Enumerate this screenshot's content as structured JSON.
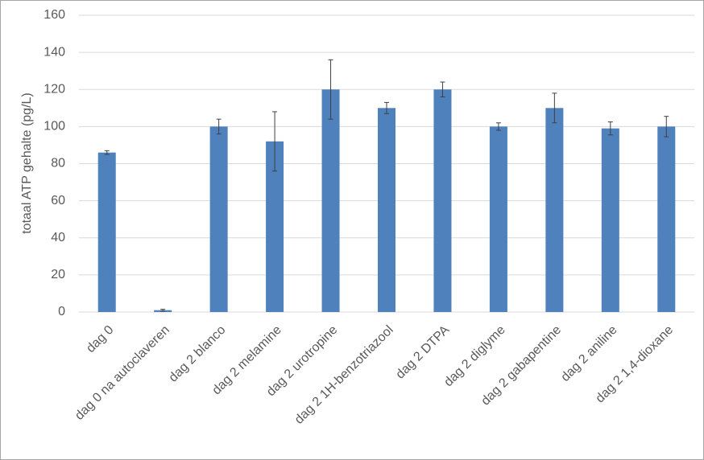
{
  "chart_data": {
    "type": "bar",
    "y_label": "totaal ATP gehalte (pg/L)",
    "categories": [
      "dag 0",
      "dag 0 na autoclaveren",
      "dag 2 blanco",
      "dag 2 melamine",
      "dag 2 urotropine",
      "dag 2 1H-benzotriazool",
      "dag 2 DTPA",
      "dag 2 diglyme",
      "dag 2 gabapentine",
      "dag 2 aniline",
      "dag 2 1,4-dioxane"
    ],
    "values": [
      86,
      1,
      100,
      92,
      120,
      110,
      120,
      100,
      110,
      99,
      100
    ],
    "errors": [
      1,
      0.5,
      4,
      16,
      16,
      3,
      4,
      2,
      8,
      3.5,
      5.5
    ],
    "color": "#4f81bd",
    "ylim": [
      0,
      160
    ],
    "yticks": [
      0,
      20,
      40,
      60,
      80,
      100,
      120,
      140,
      160
    ],
    "grid": true
  }
}
